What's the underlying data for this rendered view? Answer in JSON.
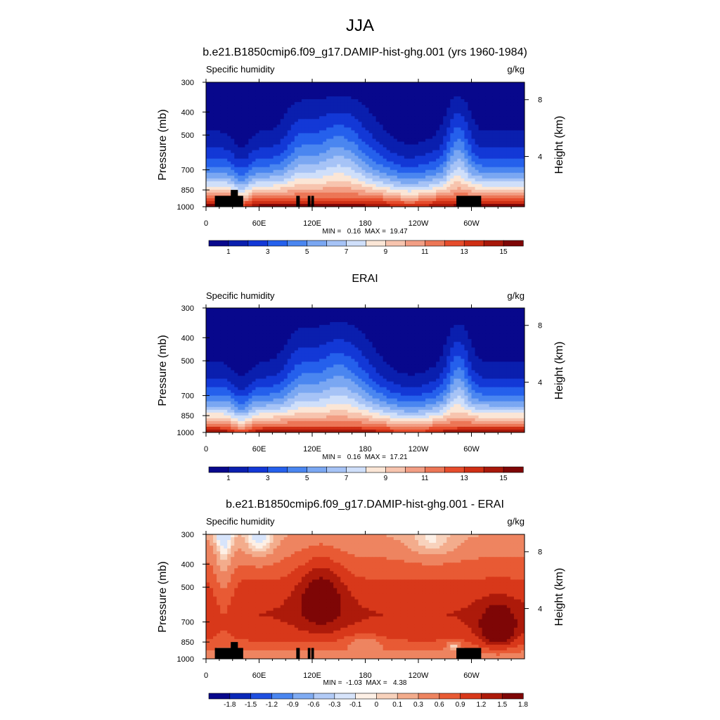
{
  "title": "JJA",
  "colors": {
    "full_palette": [
      "#08088c",
      "#0a1fae",
      "#1338d6",
      "#2560ec",
      "#4a86f0",
      "#7aa7f2",
      "#a6c3f6",
      "#cfdffa",
      "#fbe6d6",
      "#f7c4ae",
      "#f29e84",
      "#ec7656",
      "#e64c2c",
      "#cf2f14",
      "#a8180a",
      "#7e0606"
    ],
    "diff_palette": [
      "#08088c",
      "#0a28b8",
      "#1f4fe0",
      "#4a86f0",
      "#80acf3",
      "#b2cbf7",
      "#d7e4fb",
      "#fdf0e6",
      "#f8d2bc",
      "#f3ac8c",
      "#ee8460",
      "#e85a34",
      "#d8381a",
      "#ad1a0a",
      "#7e0606"
    ],
    "terrain": "#000000"
  },
  "chart_data": [
    {
      "type": "heatmap",
      "title": "b.e21.B1850cmip6.f09_g17.DAMIP-hist-ghg.001 (yrs 1960-1984)",
      "left_label": "Specific humidity",
      "right_label": "g/kg",
      "ylabel": "Pressure (mb)",
      "ylabel_right": "Height (km)",
      "xticks": [
        "0",
        "60E",
        "120E",
        "180",
        "120W",
        "60W"
      ],
      "yticks": [
        "300",
        "400",
        "500",
        "700",
        "850",
        "1000"
      ],
      "yticks_right": [
        "8",
        "4"
      ],
      "stats": "MIN =   0.16  MAX =  19.47",
      "colorbar_labels": [
        "1",
        "3",
        "5",
        "7",
        "9",
        "11",
        "13",
        "15"
      ],
      "ylim": [
        1000,
        300
      ],
      "xlim": [
        0,
        360
      ]
    },
    {
      "type": "heatmap",
      "title": "ERAI",
      "left_label": "Specific humidity",
      "right_label": "g/kg",
      "ylabel": "Pressure (mb)",
      "ylabel_right": "Height (km)",
      "xticks": [
        "0",
        "60E",
        "120E",
        "180",
        "120W",
        "60W"
      ],
      "yticks": [
        "300",
        "400",
        "500",
        "700",
        "850",
        "1000"
      ],
      "yticks_right": [
        "8",
        "4"
      ],
      "stats": "MIN =   0.16  MAX =  17.21",
      "colorbar_labels": [
        "1",
        "3",
        "5",
        "7",
        "9",
        "11",
        "13",
        "15"
      ],
      "ylim": [
        1000,
        300
      ],
      "xlim": [
        0,
        360
      ]
    },
    {
      "type": "heatmap",
      "title": "b.e21.B1850cmip6.f09_g17.DAMIP-hist-ghg.001 - ERAI",
      "left_label": "Specific humidity",
      "right_label": "g/kg",
      "ylabel": "Pressure (mb)",
      "ylabel_right": "Height (km)",
      "xticks": [
        "0",
        "60E",
        "120E",
        "180",
        "120W",
        "60W"
      ],
      "yticks": [
        "300",
        "400",
        "500",
        "700",
        "850",
        "1000"
      ],
      "yticks_right": [
        "8",
        "4"
      ],
      "stats": "MIN =  -1.03  MAX =   4.38",
      "colorbar_labels": [
        "-1.8",
        "-1.5",
        "-1.2",
        "-0.9",
        "-0.6",
        "-0.3",
        "-0.1",
        "0",
        "0.1",
        "0.3",
        "0.6",
        "0.9",
        "1.2",
        "1.5",
        "1.8"
      ],
      "ylim": [
        1000,
        300
      ],
      "xlim": [
        0,
        360
      ]
    }
  ]
}
